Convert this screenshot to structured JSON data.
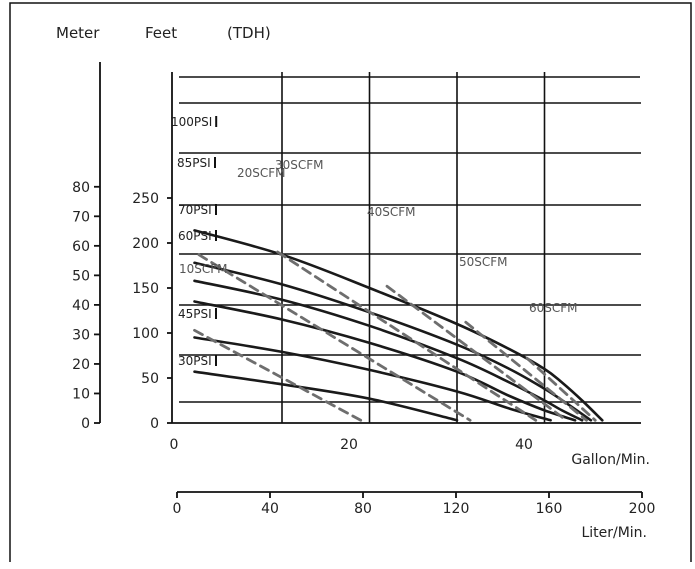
{
  "header": {
    "meter": "Meter",
    "feet": "Feet",
    "tdh": "(TDH)"
  },
  "colors": {
    "curves": "#1a1a1a",
    "scfm_lines": "#6e6e6e",
    "grid": "#111111"
  },
  "chart_data": {
    "type": "line",
    "x_unit": "Gallon/Min.",
    "x_unit_secondary": "Liter/Min.",
    "y_unit_primary": "Feet",
    "y_unit_secondary": "Meter",
    "xlim": [
      0,
      53
    ],
    "ylim": [
      0,
      250
    ],
    "x_ticks": [
      "0",
      "20",
      "40"
    ],
    "x_ticks_secondary": [
      "0",
      "40",
      "80",
      "120",
      "160",
      "200"
    ],
    "y_ticks_feet": [
      "0",
      "50",
      "100",
      "150",
      "200",
      "250"
    ],
    "y_ticks_meter": [
      "0",
      "10",
      "20",
      "30",
      "40",
      "50",
      "60",
      "70",
      "80"
    ],
    "grid": true,
    "series": [
      {
        "name": "100PSI",
        "kind": "pressure",
        "x": [
          2,
          12,
          22,
          32,
          38,
          42,
          44,
          46.3,
          48.6
        ],
        "y": [
          214,
          187,
          150,
          110,
          82,
          60,
          45,
          25,
          3
        ]
      },
      {
        "name": "85PSI",
        "kind": "pressure",
        "x": [
          2,
          12,
          22,
          32,
          38,
          42,
          44.5,
          47.3
        ],
        "y": [
          178,
          154,
          123,
          87,
          60,
          38,
          22,
          3
        ]
      },
      {
        "name": "70PSI",
        "kind": "pressure",
        "x": [
          2,
          12,
          22,
          32,
          38,
          42,
          44,
          46.3
        ],
        "y": [
          158,
          137,
          108,
          72,
          45,
          25,
          14,
          3
        ]
      },
      {
        "name": "60PSI",
        "kind": "pressure",
        "x": [
          2,
          12,
          22,
          32,
          38,
          42,
          45.5
        ],
        "y": [
          135,
          115,
          89,
          57,
          30,
          14,
          3
        ]
      },
      {
        "name": "45PSI",
        "kind": "pressure",
        "x": [
          2,
          12,
          22,
          32,
          38,
          42.7
        ],
        "y": [
          95,
          79,
          59,
          35,
          16,
          3
        ]
      },
      {
        "name": "30PSI",
        "kind": "pressure",
        "x": [
          2,
          12,
          22,
          32
        ],
        "y": [
          57,
          43,
          27,
          3
        ]
      },
      {
        "name": "10SCFM",
        "kind": "air",
        "x": [
          2,
          21
        ],
        "y": [
          103,
          3
        ]
      },
      {
        "name": "20SCFM",
        "kind": "air",
        "x": [
          2.5,
          33.5
        ],
        "y": [
          187,
          3
        ]
      },
      {
        "name": "30SCFM",
        "kind": "air",
        "x": [
          11.5,
          41
        ],
        "y": [
          190,
          3
        ]
      },
      {
        "name": "40SCFM",
        "kind": "air",
        "x": [
          24,
          44.5
        ],
        "y": [
          152,
          3
        ]
      },
      {
        "name": "50SCFM",
        "kind": "air",
        "x": [
          33,
          46.8
        ],
        "y": [
          112,
          3
        ]
      },
      {
        "name": "60SCFM",
        "kind": "air",
        "x": [
          40,
          47.8
        ],
        "y": [
          72,
          3
        ]
      }
    ]
  }
}
